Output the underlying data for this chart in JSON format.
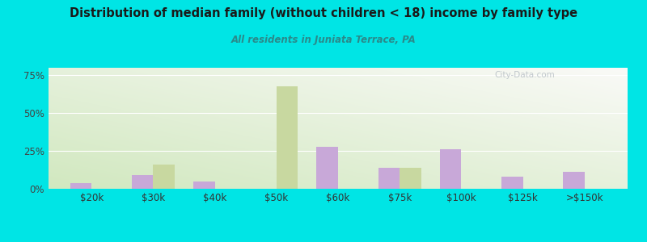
{
  "title": "Distribution of median family (without children < 18) income by family type",
  "subtitle": "All residents in Juniata Terrace, PA",
  "categories": [
    "$20k",
    "$30k",
    "$40k",
    "$50k",
    "$60k",
    "$75k",
    "$100k",
    "$125k",
    ">$150k"
  ],
  "married_couple": [
    4,
    9,
    5,
    0,
    28,
    14,
    26,
    8,
    11
  ],
  "female_no_husband": [
    0,
    16,
    0,
    68,
    0,
    14,
    0,
    0,
    0
  ],
  "married_color": "#c8a8d8",
  "female_color": "#c8d8a0",
  "background_outer": "#00e5e5",
  "title_color": "#1a1a1a",
  "subtitle_color": "#2a8a8a",
  "ylim": [
    0,
    80
  ],
  "yticks": [
    0,
    25,
    50,
    75
  ],
  "bar_width": 0.35,
  "watermark": "City-Data.com"
}
